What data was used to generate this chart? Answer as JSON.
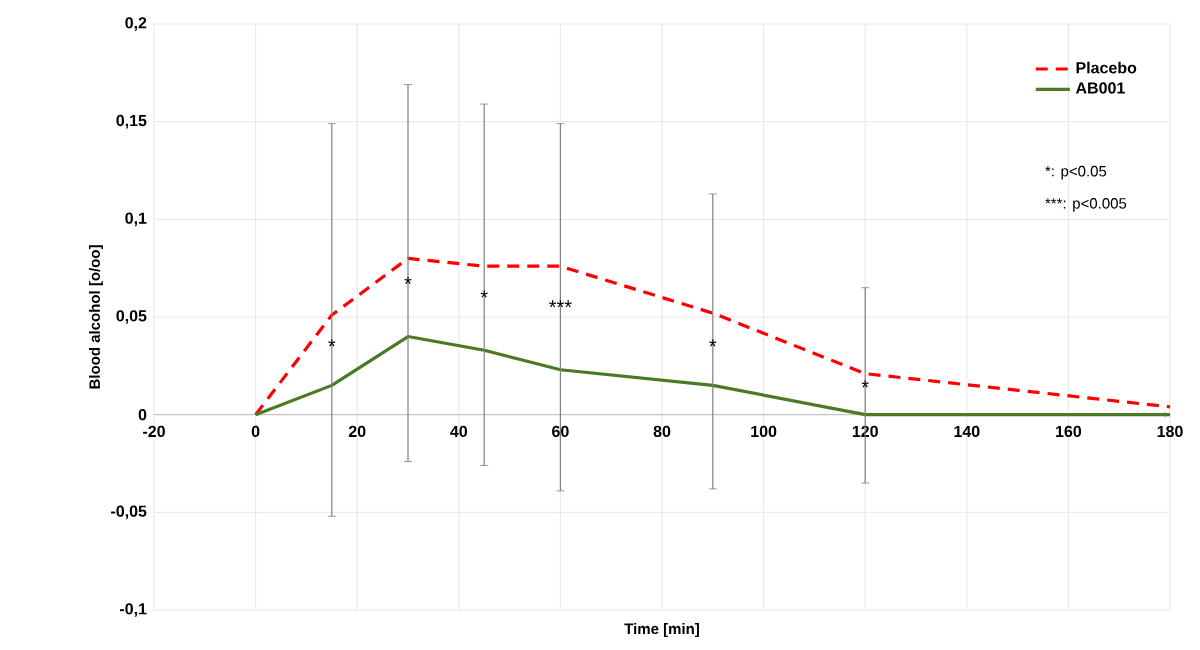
{
  "chart_data": {
    "type": "line",
    "xlabel": "Time [min]",
    "ylabel": "Blood alcohol [o/oo]",
    "x": [
      0,
      15,
      30,
      45,
      60,
      90,
      120,
      180
    ],
    "series": [
      {
        "name": "Placebo",
        "color": "#ff0000",
        "line_style": "dashed",
        "values": [
          0,
          0.051,
          0.08,
          0.076,
          0.076,
          0.052,
          0.021,
          0.004
        ],
        "errors": [
          null,
          [
            -0.052,
            0.149
          ],
          [
            -0.024,
            0.169
          ],
          [
            -0.026,
            0.159
          ],
          [
            -0.039,
            0.149
          ],
          [
            -0.038,
            0.113
          ],
          [
            -0.035,
            0.065
          ],
          null
        ]
      },
      {
        "name": "AB001",
        "color": "#4a7a23",
        "line_style": "solid",
        "values": [
          0,
          0.015,
          0.04,
          0.033,
          0.023,
          0.015,
          0,
          0
        ]
      }
    ],
    "xlim": [
      -20,
      180
    ],
    "xticks": [
      -20,
      0,
      20,
      40,
      60,
      80,
      100,
      120,
      140,
      160,
      180
    ],
    "ylim": [
      -0.1,
      0.2
    ],
    "yticks": [
      {
        "value": -0.1,
        "label": "-0,1"
      },
      {
        "value": -0.05,
        "label": "-0,05"
      },
      {
        "value": 0,
        "label": "0"
      },
      {
        "value": 0.05,
        "label": "0,05"
      },
      {
        "value": 0.1,
        "label": "0,1"
      },
      {
        "value": 0.15,
        "label": "0,15"
      },
      {
        "value": 0.2,
        "label": "0,2"
      }
    ],
    "grid": true,
    "legend": "top right",
    "marker": "none",
    "annotations": [
      {
        "text": "*",
        "x": 15,
        "y": 0.035
      },
      {
        "text": "*",
        "x": 30,
        "y": 0.067
      },
      {
        "text": "*",
        "x": 45,
        "y": 0.06
      },
      {
        "text": "***",
        "x": 60,
        "y": 0.055
      },
      {
        "text": "*",
        "x": 90,
        "y": 0.035
      },
      {
        "text": "*",
        "x": 120,
        "y": 0.014
      },
      "*:    p<0.05",
      "***: p<0.005"
    ]
  }
}
